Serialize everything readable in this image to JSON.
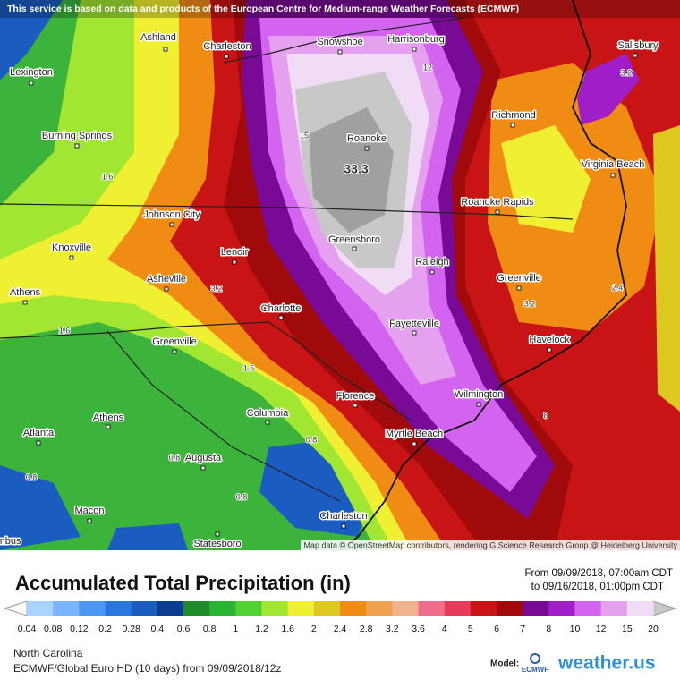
{
  "banner": "This service is based on data and products of the European Centre for Medium-range Weather Forecasts (ECMWF)",
  "cities": [
    "Ashland",
    "Charleston",
    "Snowshoe",
    "Harrisonburg",
    "Salisbury",
    "Lexington",
    "Richmond",
    "Burning Springs",
    "Roanoke",
    "Virginia Beach",
    "Johnson City",
    "Greensboro",
    "Roanoke Rapids",
    "Knoxville",
    "Lenoir",
    "Raleigh",
    "Athens",
    "Asheville",
    "Greenville",
    "Charlotte",
    "Fayetteville",
    "Havelock",
    "Greenville",
    "Florence",
    "Wilmington",
    "Athens",
    "Columbia",
    "Myrtle Beach",
    "Atlanta",
    "Augusta",
    "Macon",
    "Charleston",
    "Statesboro",
    "mbus"
  ],
  "contour_labels": [
    "33.3",
    "15",
    "12",
    "3.2",
    "3.2",
    "3.2",
    "2.4",
    "1.6",
    "1.6",
    "1.6",
    "0.8",
    "0.8",
    "0.8",
    "0.8",
    "8"
  ],
  "attribution": "Map data © OpenStreetMap contributors, rendering GIScience Research Group @ Heidelberg University",
  "title": "Accumulated Total Precipitation (in)",
  "date_from": "From 09/09/2018, 07:00am CDT",
  "date_to": "to 09/16/2018, 01:00pm CDT",
  "legend": {
    "ticks": [
      0.04,
      0.08,
      0.12,
      0.2,
      0.28,
      0.4,
      0.6,
      0.8,
      1,
      1.2,
      1.6,
      2,
      2.4,
      2.8,
      3.2,
      3.6,
      4,
      5,
      6,
      7,
      8,
      10,
      12,
      15,
      20
    ],
    "colors": [
      "#a8d4ff",
      "#78b4ff",
      "#4a96f0",
      "#2878e0",
      "#1a5cc0",
      "#0a3c90",
      "#1e8c28",
      "#28b432",
      "#50d232",
      "#a0e632",
      "#f0f032",
      "#dcc81e",
      "#f08c14",
      "#f0a050",
      "#f0b48c",
      "#f06e8c",
      "#e63c5a",
      "#c81414",
      "#a00a0a",
      "#780a96",
      "#a01ec8",
      "#d264f0",
      "#e6a0f0",
      "#f0dcf5"
    ]
  },
  "region": "North Carolina",
  "model_run": "ECMWF/Global Euro HD (10 days) from 09/09/2018/12z",
  "model_label": "Model:",
  "model_name": "ECMWF",
  "brand": "weather.us"
}
